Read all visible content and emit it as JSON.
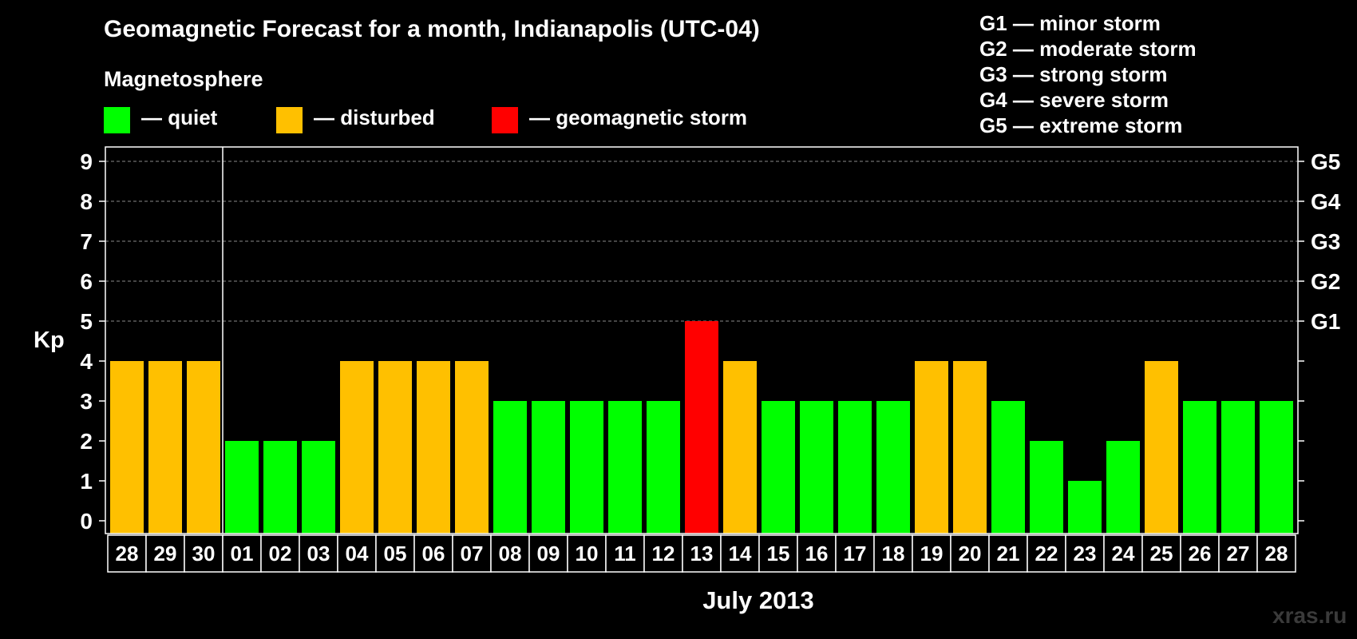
{
  "title": "Geomagnetic Forecast for a month, Indianapolis (UTC-04)",
  "magnetosphere_title": "Magnetosphere",
  "legend": [
    {
      "label": "— quiet",
      "color": "#00ff00"
    },
    {
      "label": "— disturbed",
      "color": "#ffc000"
    },
    {
      "label": "— geomagnetic storm",
      "color": "#ff0000"
    }
  ],
  "g_scale_legend": [
    "G1 — minor storm",
    "G2 — moderate storm",
    "G3 — strong storm",
    "G4 — severe storm",
    "G5 — extreme storm"
  ],
  "watermark": "xras.ru",
  "chart_data": {
    "type": "bar",
    "title": "Geomagnetic Forecast for a month, Indianapolis (UTC-04)",
    "xlabel": "July 2013",
    "ylabel": "Kp",
    "ylim": [
      0,
      9
    ],
    "yticks": [
      "0",
      "1",
      "2",
      "3",
      "4",
      "5",
      "6",
      "7",
      "8",
      "9"
    ],
    "right_axis_labels": [
      {
        "kp": 5,
        "label": "G1"
      },
      {
        "kp": 6,
        "label": "G2"
      },
      {
        "kp": 7,
        "label": "G3"
      },
      {
        "kp": 8,
        "label": "G4"
      },
      {
        "kp": 9,
        "label": "G5"
      }
    ],
    "grid_kp_levels": [
      5,
      6,
      7,
      8,
      9
    ],
    "month_divider_after_index": 2,
    "categories": [
      "28",
      "29",
      "30",
      "01",
      "02",
      "03",
      "04",
      "05",
      "06",
      "07",
      "08",
      "09",
      "10",
      "11",
      "12",
      "13",
      "14",
      "15",
      "16",
      "17",
      "18",
      "19",
      "20",
      "21",
      "22",
      "23",
      "24",
      "25",
      "26",
      "27",
      "28"
    ],
    "values": [
      4,
      4,
      4,
      2,
      2,
      2,
      4,
      4,
      4,
      4,
      3,
      3,
      3,
      3,
      3,
      5,
      4,
      3,
      3,
      3,
      3,
      4,
      4,
      3,
      2,
      1,
      2,
      4,
      3,
      3,
      3
    ],
    "colors": {
      "quiet": "#00ff00",
      "disturbed": "#ffc000",
      "storm": "#ff0000"
    }
  }
}
